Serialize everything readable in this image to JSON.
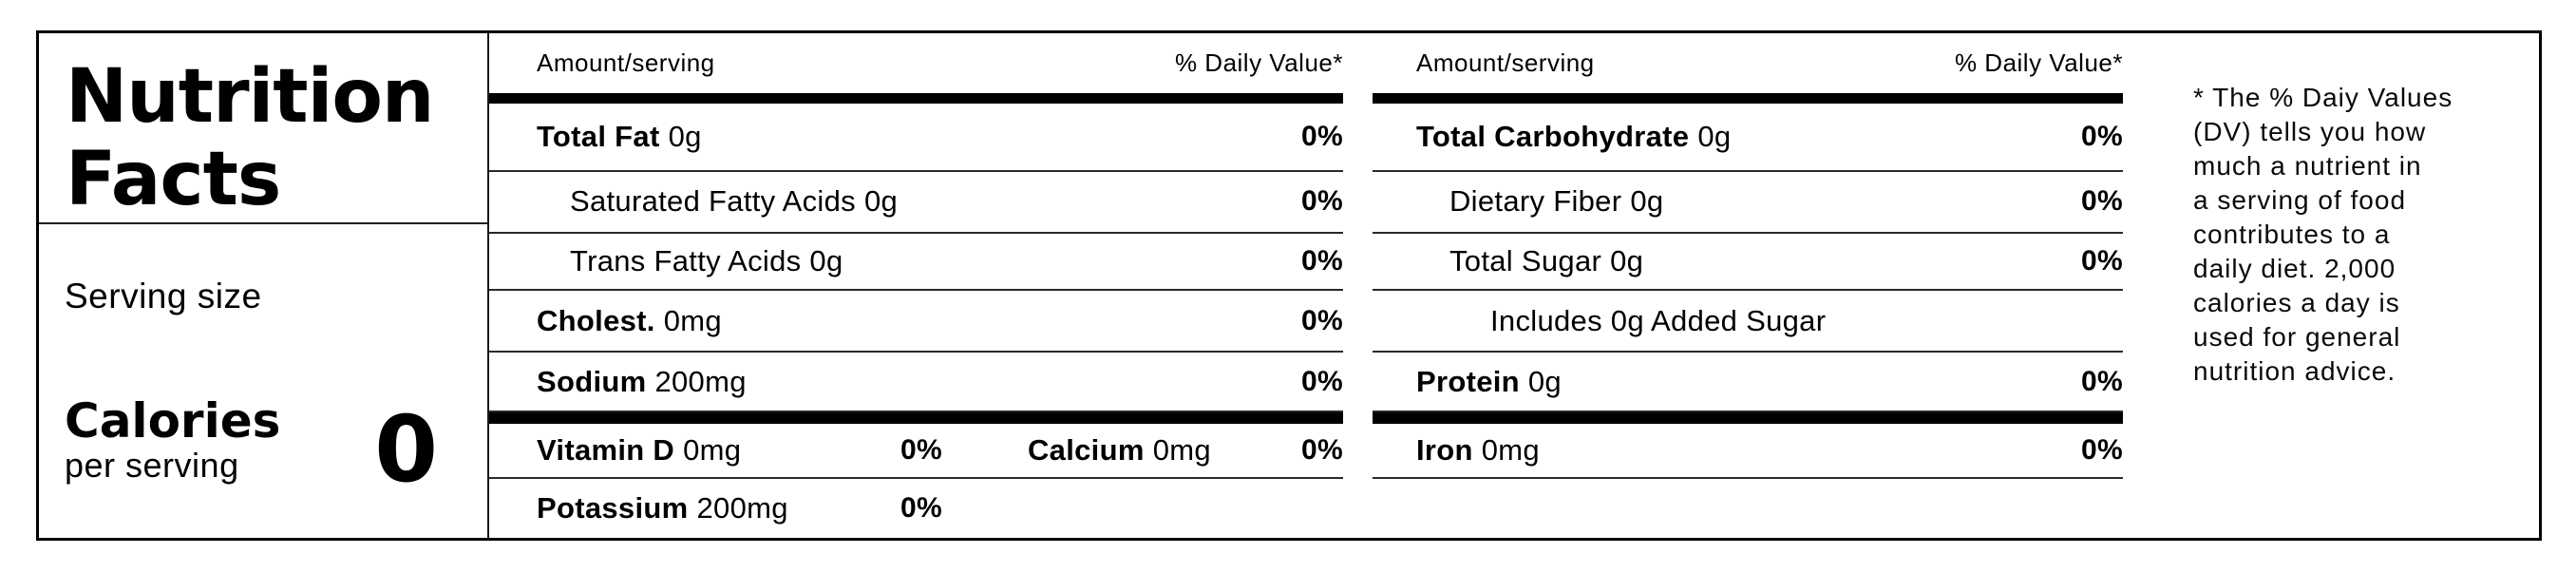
{
  "title": "Nutrition\nFacts",
  "serving_size_label": "Serving size",
  "calories": {
    "label": "Calories",
    "sublabel": "per serving",
    "value": "0"
  },
  "columns": [
    {
      "header": {
        "amount": "Amount/serving",
        "daily_value": "% Daily Value*"
      },
      "rows": [
        {
          "name": "Total Fat",
          "amount": "0g",
          "dv": "0%"
        },
        {
          "name": "Saturated Fatty Acids",
          "amount": "0g",
          "dv": "0%"
        },
        {
          "name": "Trans Fatty Acids",
          "amount": "0g",
          "dv": "0%"
        },
        {
          "name": "Cholest.",
          "amount": "0mg",
          "dv": "0%"
        },
        {
          "name": "Sodium",
          "amount": "200mg",
          "dv": "0%"
        }
      ],
      "micros": [
        {
          "name": "Vitamin D",
          "amount": "0mg",
          "dv": "0%"
        },
        {
          "name": "Calcium",
          "amount": "0mg",
          "dv": "0%"
        },
        {
          "name": "Potassium",
          "amount": "200mg",
          "dv": "0%"
        }
      ]
    },
    {
      "header": {
        "amount": "Amount/serving",
        "daily_value": "% Daily Value*"
      },
      "rows": [
        {
          "name": "Total Carbohydrate",
          "amount": "0g",
          "dv": "0%"
        },
        {
          "name": "Dietary Fiber",
          "amount": "0g",
          "dv": "0%"
        },
        {
          "name": "Total Sugar",
          "amount": "0g",
          "dv": "0%"
        },
        {
          "name": "Includes 0g Added Sugar",
          "amount": "",
          "dv": ""
        },
        {
          "name": "Protein",
          "amount": "0g",
          "dv": "0%"
        }
      ],
      "micros": [
        {
          "name": "Iron",
          "amount": "0mg",
          "dv": "0%"
        }
      ]
    }
  ],
  "footnote": "* The % Daiy Values\n(DV) tells you how\nmuch a nutrient in\na serving of food\ncontributes to a\ndaily diet. 2,000\ncalories a day is\nused for general\nnutrition advice.",
  "colors": {
    "ink": "#000000",
    "line": "#2a2a2a"
  }
}
